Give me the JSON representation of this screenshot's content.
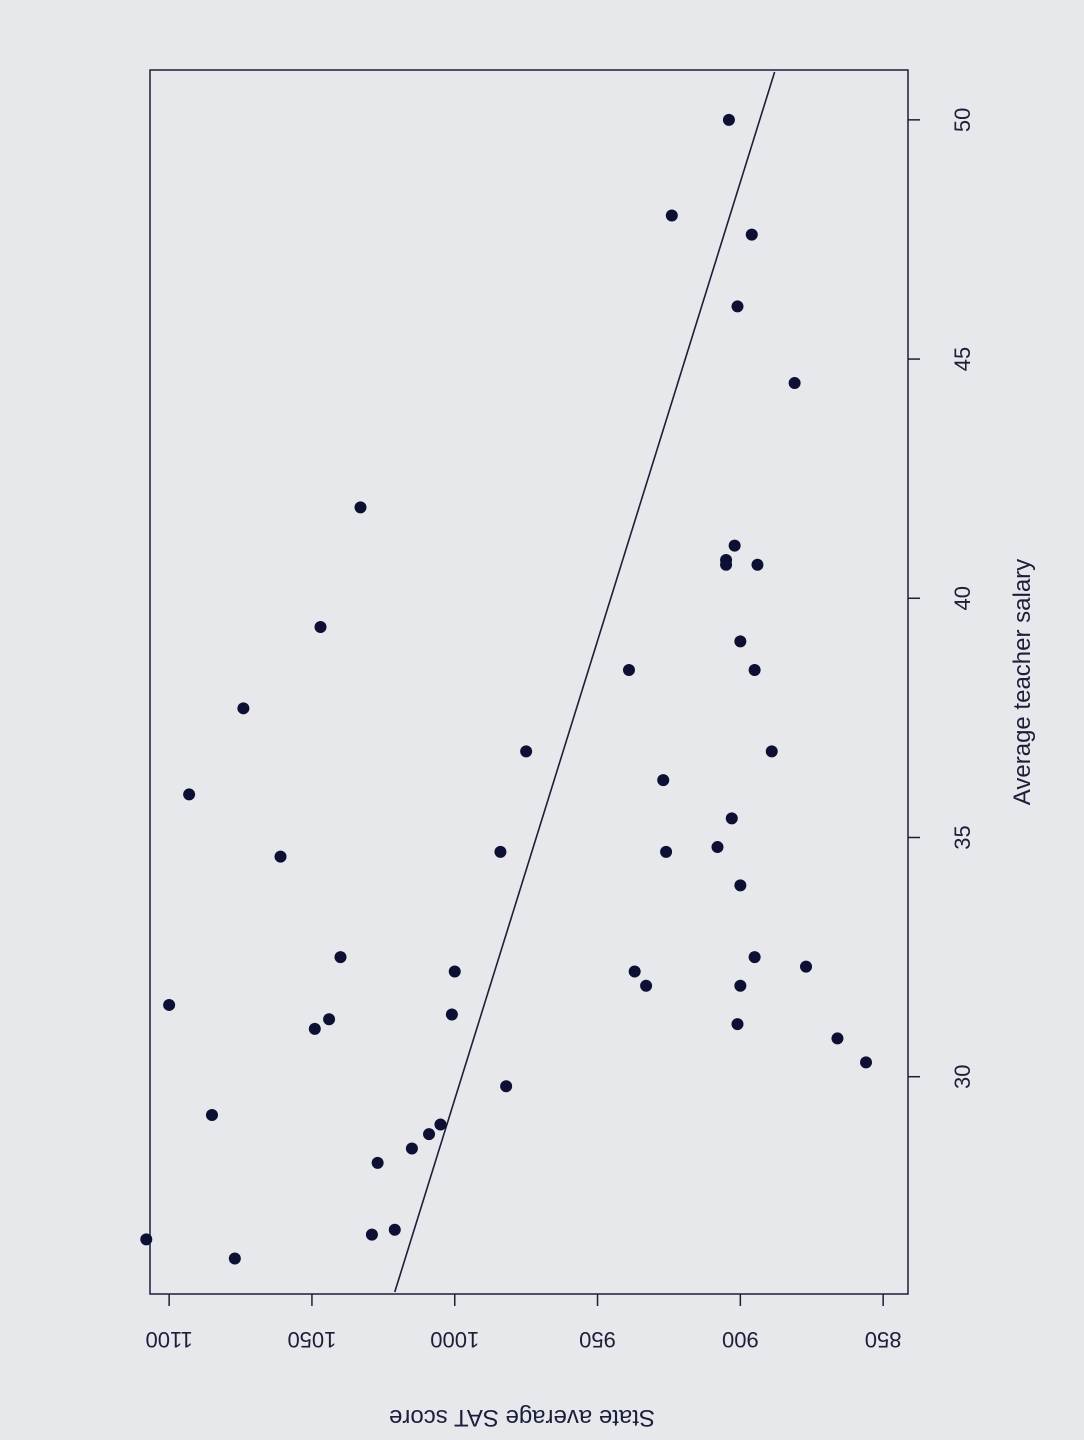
{
  "chart_data": {
    "type": "scatter",
    "orientation": "rotated-90-clockwise",
    "xlabel": "Average teacher salary",
    "ylabel": "State average SAT score",
    "xlim": [
      25.5,
      51.0
    ],
    "ylim": [
      842,
      1106
    ],
    "xticks": [
      30,
      35,
      40,
      45,
      50
    ],
    "yticks": [
      850,
      900,
      950,
      1000,
      1050,
      1100
    ],
    "xtick_labels": [
      "30",
      "35",
      "40",
      "45",
      "50"
    ],
    "ytick_labels": [
      "850",
      "900",
      "950",
      "1000",
      "1050",
      "1100"
    ],
    "grid": false,
    "colors": {
      "background": "#e6e8ec",
      "points": "#0d0f33",
      "line": "#1c1f3a",
      "text": "#1c1f3a"
    },
    "series": [
      {
        "x": [
          26.6,
          26.2,
          26.7,
          26.8,
          28.2,
          28.5,
          28.8,
          29.0,
          29.2,
          29.8,
          30.3,
          30.8,
          31.0,
          31.1,
          31.2,
          31.3,
          31.5,
          31.9,
          31.9,
          32.2,
          32.2,
          32.3,
          32.5,
          32.5,
          34.0,
          34.6,
          34.7,
          34.7,
          34.8,
          35.4,
          36.2,
          36.8,
          36.8,
          35.9,
          37.7,
          38.5,
          38.5,
          39.1,
          39.4,
          40.7,
          40.7,
          40.8,
          41.1,
          41.9,
          44.5,
          46.1,
          47.6,
          48.0,
          50.0
        ],
        "y": [
          1108,
          1077,
          1029,
          1021,
          1027,
          1015,
          1009,
          1005,
          1085,
          982,
          856,
          866,
          1049,
          901,
          1044,
          1001,
          1100,
          933,
          900,
          1000,
          937,
          877,
          1040,
          895,
          900,
          1061,
          984,
          926,
          908,
          903,
          927,
          975,
          889,
          1093,
          1074,
          939,
          895,
          900,
          1047,
          905,
          894,
          905,
          902,
          1033,
          881,
          901,
          896,
          924,
          904
        ]
      }
    ],
    "fit_line": {
      "x": [
        25.5,
        51.0
      ],
      "y": [
        1021,
        888
      ]
    }
  }
}
